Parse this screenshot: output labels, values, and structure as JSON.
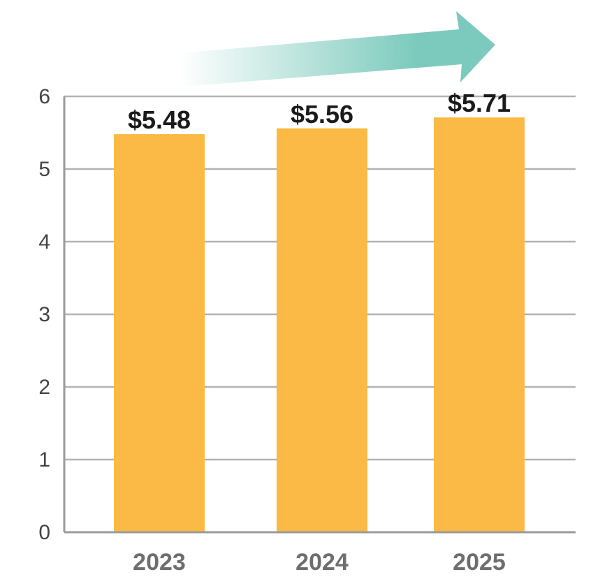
{
  "chart_data": {
    "type": "bar",
    "title": "",
    "xlabel": "",
    "ylabel": "",
    "categories": [
      "2023",
      "2024",
      "2025"
    ],
    "values": [
      5.48,
      5.56,
      5.71
    ],
    "data_labels": [
      "$5.48",
      "$5.56",
      "$5.71"
    ],
    "ylim": [
      0,
      6
    ],
    "yticks": [
      "0",
      "1",
      "2",
      "3",
      "4",
      "5",
      "6"
    ],
    "grid": true,
    "legend": "none",
    "trend_arrow": "up-right",
    "colors": {
      "bar": "#FBB945",
      "grid": "#b3b3b3",
      "axis": "#9a9a9a",
      "arrow": "#7ccabd"
    }
  }
}
